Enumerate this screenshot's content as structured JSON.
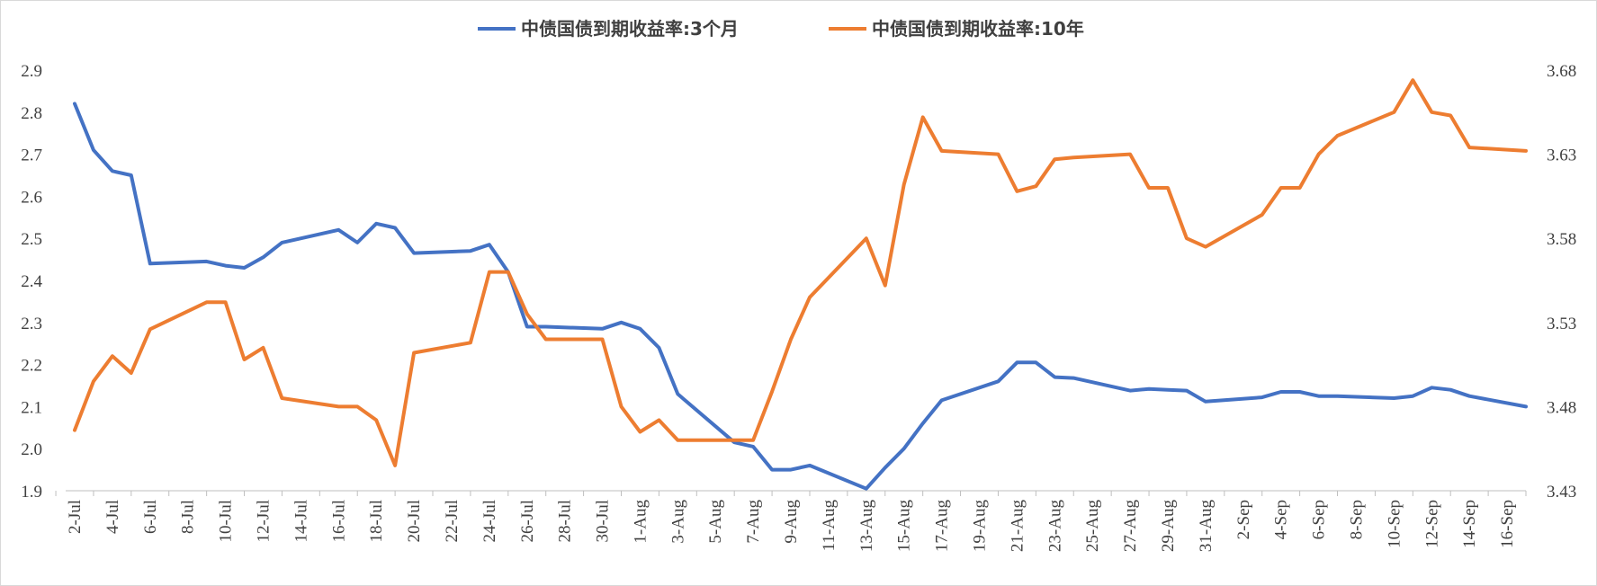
{
  "chart_data": {
    "type": "line",
    "title": "",
    "xlabel": "",
    "ylabel": "",
    "y2label": "",
    "legend_position": "top-center",
    "grid": false,
    "ylim": [
      1.9,
      2.9
    ],
    "yticks": [
      "1.9",
      "2.0",
      "2.1",
      "2.2",
      "2.3",
      "2.4",
      "2.5",
      "2.6",
      "2.7",
      "2.8",
      "2.9"
    ],
    "y2lim": [
      3.43,
      3.68
    ],
    "y2ticks": [
      "3.43",
      "3.48",
      "3.53",
      "3.58",
      "3.63",
      "3.68"
    ],
    "x_tick_labels": [
      "2-Jul",
      "4-Jul",
      "6-Jul",
      "8-Jul",
      "10-Jul",
      "12-Jul",
      "14-Jul",
      "16-Jul",
      "18-Jul",
      "20-Jul",
      "22-Jul",
      "24-Jul",
      "26-Jul",
      "28-Jul",
      "30-Jul",
      "1-Aug",
      "3-Aug",
      "5-Aug",
      "7-Aug",
      "9-Aug",
      "11-Aug",
      "13-Aug",
      "15-Aug",
      "17-Aug",
      "19-Aug",
      "21-Aug",
      "23-Aug",
      "25-Aug",
      "27-Aug",
      "29-Aug",
      "31-Aug",
      "2-Sep",
      "4-Sep",
      "6-Sep",
      "8-Sep",
      "10-Sep",
      "12-Sep",
      "14-Sep",
      "16-Sep"
    ],
    "x_range": [
      "2-Jul",
      "17-Sep"
    ],
    "x": [
      "2-Jul",
      "3-Jul",
      "4-Jul",
      "5-Jul",
      "6-Jul",
      "9-Jul",
      "10-Jul",
      "11-Jul",
      "12-Jul",
      "13-Jul",
      "16-Jul",
      "17-Jul",
      "18-Jul",
      "19-Jul",
      "20-Jul",
      "23-Jul",
      "24-Jul",
      "25-Jul",
      "26-Jul",
      "27-Jul",
      "30-Jul",
      "31-Jul",
      "1-Aug",
      "2-Aug",
      "3-Aug",
      "6-Aug",
      "7-Aug",
      "8-Aug",
      "9-Aug",
      "10-Aug",
      "13-Aug",
      "14-Aug",
      "15-Aug",
      "16-Aug",
      "17-Aug",
      "20-Aug",
      "21-Aug",
      "22-Aug",
      "23-Aug",
      "24-Aug",
      "27-Aug",
      "28-Aug",
      "29-Aug",
      "30-Aug",
      "31-Aug",
      "3-Sep",
      "4-Sep",
      "5-Sep",
      "6-Sep",
      "7-Sep",
      "10-Sep",
      "11-Sep",
      "12-Sep",
      "13-Sep",
      "14-Sep",
      "17-Sep"
    ],
    "series": [
      {
        "name": "中债国债到期收益率:3个月",
        "axis": "left",
        "color": "#4472c4",
        "values": [
          2.82,
          2.71,
          2.66,
          2.65,
          2.44,
          2.445,
          2.435,
          2.43,
          2.455,
          2.49,
          2.52,
          2.49,
          2.535,
          2.525,
          2.465,
          2.47,
          2.485,
          2.42,
          2.29,
          2.29,
          2.285,
          2.3,
          2.285,
          2.24,
          2.13,
          2.015,
          2.005,
          1.95,
          1.95,
          1.96,
          1.905,
          1.955,
          2.0,
          2.06,
          2.115,
          2.16,
          2.205,
          2.205,
          2.17,
          2.168,
          2.138,
          2.142,
          2.14,
          2.138,
          2.112,
          2.122,
          2.135,
          2.135,
          2.125,
          2.125,
          2.12,
          2.125,
          2.145,
          2.14,
          2.125,
          2.1
        ]
      },
      {
        "name": "中债国债到期收益率:10年",
        "axis": "right",
        "color": "#ed7d31",
        "values": [
          3.466,
          3.495,
          3.51,
          3.5,
          3.526,
          3.542,
          3.542,
          3.508,
          3.515,
          3.485,
          3.48,
          3.48,
          3.472,
          3.445,
          3.512,
          3.518,
          3.56,
          3.56,
          3.535,
          3.52,
          3.52,
          3.48,
          3.465,
          3.472,
          3.46,
          3.46,
          3.46,
          3.489,
          3.52,
          3.545,
          3.58,
          3.552,
          3.612,
          3.652,
          3.632,
          3.63,
          3.608,
          3.611,
          3.627,
          3.628,
          3.63,
          3.61,
          3.61,
          3.58,
          3.575,
          3.594,
          3.61,
          3.61,
          3.63,
          3.641,
          3.655,
          3.674,
          3.655,
          3.653,
          3.634,
          3.632
        ]
      }
    ]
  }
}
